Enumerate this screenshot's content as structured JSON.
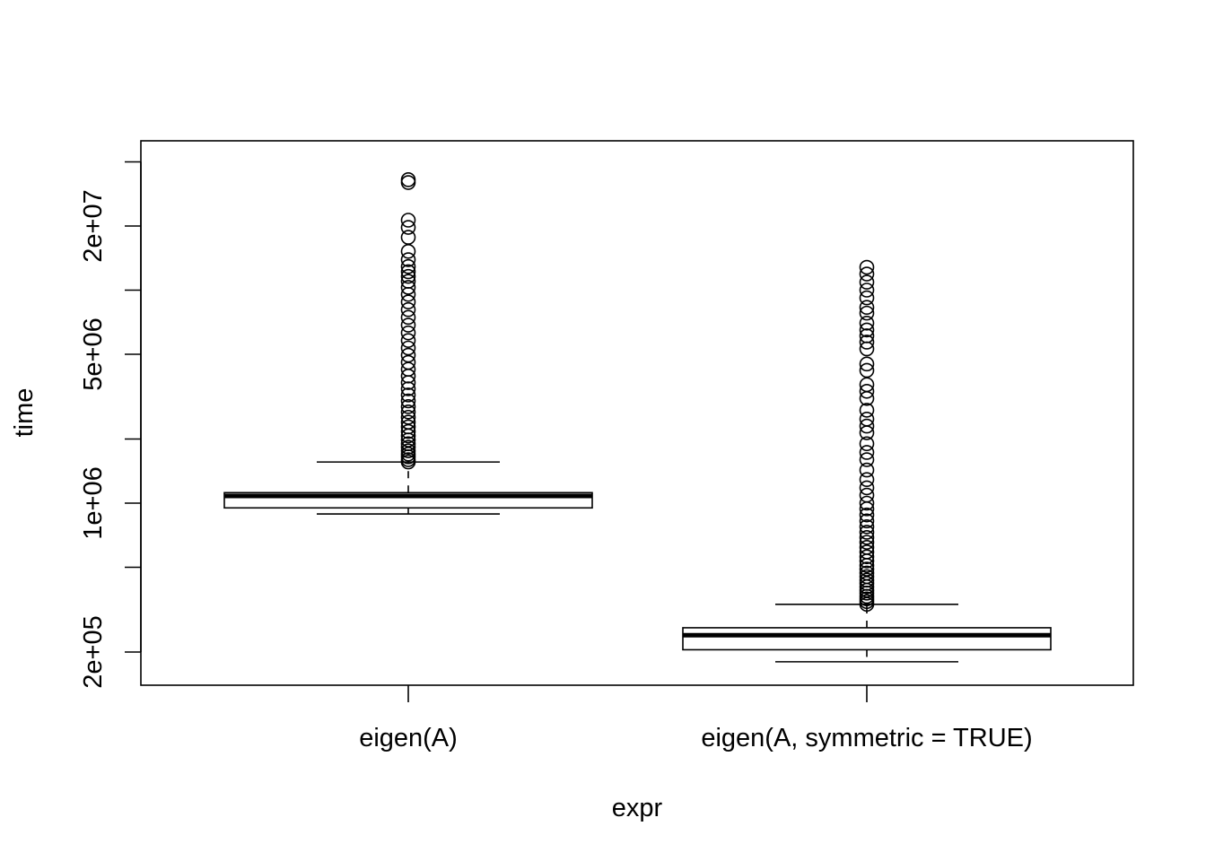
{
  "chart_data": {
    "type": "boxplot",
    "title": "",
    "xlabel": "expr",
    "ylabel": "time",
    "y_scale": "log",
    "ylim": [
      150000,
      40000000
    ],
    "y_ticks": [
      {
        "value": 200000,
        "label": "2e+05"
      },
      {
        "value": 500000,
        "label": ""
      },
      {
        "value": 1000000,
        "label": "1e+06"
      },
      {
        "value": 2000000,
        "label": ""
      },
      {
        "value": 5000000,
        "label": "5e+06"
      },
      {
        "value": 10000000,
        "label": ""
      },
      {
        "value": 20000000,
        "label": "2e+07"
      },
      {
        "value": 40000000,
        "label": ""
      }
    ],
    "categories": [
      "eigen(A)",
      "eigen(A, symmetric = TRUE)"
    ],
    "boxes": [
      {
        "name": "eigen(A)",
        "whisker_low": 890000,
        "q1": 950000,
        "median": 1080000,
        "q3": 1120000,
        "whisker_high": 1560000,
        "outliers": [
          1560000,
          1600000,
          1650000,
          1700000,
          1760000,
          1830000,
          1900000,
          1980000,
          2070000,
          2170000,
          2280000,
          2400000,
          2530000,
          2680000,
          2840000,
          3020000,
          3220000,
          3440000,
          3680000,
          3950000,
          4250000,
          4580000,
          4950000,
          5350000,
          5800000,
          6300000,
          6850000,
          7450000,
          8100000,
          8800000,
          9550000,
          10300000,
          11000000,
          11600000,
          12200000,
          12900000,
          13900000,
          15200000,
          17700000,
          19700000,
          21300000,
          32000000,
          33000000
        ]
      },
      {
        "name": "eigen(A, symmetric = TRUE)",
        "whisker_low": 180000,
        "q1": 205000,
        "median": 240000,
        "q3": 260000,
        "whisker_high": 335000,
        "outliers": [
          335000,
          345000,
          355000,
          365000,
          378000,
          390000,
          405000,
          420000,
          435000,
          452000,
          470000,
          490000,
          510000,
          535000,
          560000,
          590000,
          620000,
          655000,
          690000,
          730000,
          775000,
          825000,
          880000,
          940000,
          1000000,
          1090000,
          1180000,
          1290000,
          1430000,
          1600000,
          1730000,
          1900000,
          2140000,
          2300000,
          2480000,
          2730000,
          3100000,
          3350000,
          3600000,
          4200000,
          4500000,
          5300000,
          5700000,
          6100000,
          6500000,
          7000000,
          7800000,
          8300000,
          9200000,
          10000000,
          10900000,
          11900000,
          12800000
        ]
      }
    ]
  }
}
